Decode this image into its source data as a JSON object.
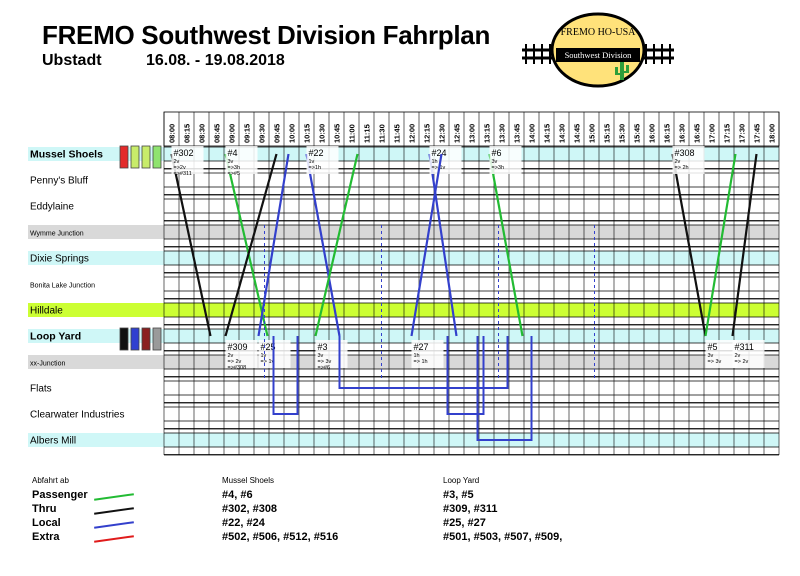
{
  "header": {
    "title": "FREMO Southwest Division Fahrplan",
    "location": "Ubstadt",
    "dates": "16.08. - 19.08.2018"
  },
  "logo": {
    "top_text": "FREMO HO-USA",
    "bottom_text": "Southwest Division",
    "colors": {
      "ring": "#000000",
      "fill": "#ffe27a",
      "cactus": "#2e9e3a"
    }
  },
  "times": [
    "08:00",
    "08:15",
    "08:30",
    "08:45",
    "09:00",
    "09:15",
    "09:30",
    "09:45",
    "10:00",
    "10:15",
    "10:30",
    "10:45",
    "11:00",
    "11:15",
    "11:30",
    "11:45",
    "12:00",
    "12:15",
    "12:30",
    "12:45",
    "13:00",
    "13:15",
    "13:30",
    "13:45",
    "14:00",
    "14:15",
    "14:30",
    "14:45",
    "15:00",
    "15:15",
    "15:30",
    "15:45",
    "16:00",
    "16:15",
    "16:30",
    "16:45",
    "17:00",
    "17:15",
    "17:30",
    "17:45",
    "18:00"
  ],
  "stations": [
    {
      "name": "Mussel Shoels",
      "style": "major",
      "bg": "#cff7f7",
      "swatches": [
        "#e32b2b",
        "#c8ec6a",
        "#c8ec6a",
        "#8fe36f"
      ]
    },
    {
      "name": "Penny's Bluff",
      "style": "normal",
      "bg": "#ffffff"
    },
    {
      "name": "Eddylaine",
      "style": "normal",
      "bg": "#ffffff"
    },
    {
      "name": "Wymme Junction",
      "style": "small",
      "bg": "#d9d9d9"
    },
    {
      "name": "Dixie Springs",
      "style": "normal",
      "bg": "#cff7f7"
    },
    {
      "name": "Bonita Lake Junction",
      "style": "small",
      "bg": "#ffffff"
    },
    {
      "name": "Hilldale",
      "style": "normal",
      "bg": "#ccff33"
    },
    {
      "name": "Loop Yard",
      "style": "major",
      "bg": "#cff7f7",
      "swatches": [
        "#111111",
        "#3040d0",
        "#8b2020",
        "#9a9a9a"
      ]
    },
    {
      "name": "xx-Junction",
      "style": "small",
      "bg": "#d9d9d9"
    },
    {
      "name": "Flats",
      "style": "normal",
      "bg": "#ffffff"
    },
    {
      "name": "Clearwater Industries",
      "style": "normal",
      "bg": "#ffffff"
    },
    {
      "name": "Albers Mill",
      "style": "normal",
      "bg": "#cff7f7"
    }
  ],
  "trains": [
    {
      "id": "#302",
      "type": "thru",
      "color": "#111111",
      "t0": 8.0,
      "t1": 8.65,
      "dir": "down",
      "notes": [
        "2v",
        "=>2v",
        "=>#311"
      ]
    },
    {
      "id": "#4",
      "type": "passenger",
      "color": "#22bb33",
      "t0": 8.9,
      "t1": 9.6,
      "dir": "down",
      "notes": [
        "3v",
        "=>3h",
        "=>#5"
      ]
    },
    {
      "id": "#22",
      "type": "local",
      "color": "#3340cc",
      "t0": 10.25,
      "t1": 10.8,
      "dir": "down",
      "notes": [
        "1v",
        "=>1h"
      ]
    },
    {
      "id": "#24",
      "type": "local",
      "color": "#3340cc",
      "t0": 12.3,
      "t1": 12.75,
      "dir": "down",
      "notes": [
        "1h",
        "=> 1v"
      ]
    },
    {
      "id": "#6",
      "type": "passenger",
      "color": "#22bb33",
      "t0": 13.3,
      "t1": 13.85,
      "dir": "down",
      "notes": [
        "3v",
        "=>3h"
      ]
    },
    {
      "id": "#308",
      "type": "thru",
      "color": "#111111",
      "t0": 16.35,
      "t1": 16.9,
      "dir": "down",
      "notes": [
        "2v",
        "=> 2h"
      ]
    },
    {
      "id": "#309",
      "type": "thru",
      "color": "#111111",
      "t0": 8.9,
      "t1": 9.75,
      "dir": "up",
      "notes": [
        "2v",
        "=> 2v",
        "=>#308"
      ]
    },
    {
      "id": "#25",
      "type": "local",
      "color": "#3340cc",
      "t0": 9.45,
      "t1": 9.95,
      "dir": "up",
      "notes": [
        "1v",
        "=> 1v"
      ]
    },
    {
      "id": "#3",
      "type": "passenger",
      "color": "#22bb33",
      "t0": 10.4,
      "t1": 11.1,
      "dir": "up",
      "notes": [
        "3v",
        "=> 3v",
        "=>#6"
      ]
    },
    {
      "id": "#27",
      "type": "local",
      "color": "#3340cc",
      "t0": 12.0,
      "t1": 12.5,
      "dir": "up",
      "notes": [
        "1h",
        "=> 1h"
      ]
    },
    {
      "id": "#5",
      "type": "passenger",
      "color": "#22bb33",
      "t0": 16.9,
      "t1": 17.4,
      "dir": "up",
      "notes": [
        "3v",
        "=> 3v"
      ]
    },
    {
      "id": "#311",
      "type": "thru",
      "color": "#111111",
      "t0": 17.35,
      "t1": 17.75,
      "dir": "up",
      "notes": [
        "2v",
        "=> 2v"
      ]
    }
  ],
  "legend": {
    "heading": "Abfahrt ab",
    "items": [
      {
        "label": "Passenger",
        "color": "#22bb33"
      },
      {
        "label": "Thru",
        "color": "#111111"
      },
      {
        "label": "Local",
        "color": "#3340cc"
      },
      {
        "label": "Extra",
        "color": "#e01b1b"
      }
    ]
  },
  "columns": [
    {
      "heading": "Mussel Shoels",
      "rows": [
        "#4, #6",
        "#302, #308",
        "#22, #24",
        "#502, #506, #512, #516"
      ]
    },
    {
      "heading": "Loop Yard",
      "rows": [
        "#3, #5",
        "#309, #311",
        "#25, #27",
        "#501, #503, #507, #509,"
      ]
    }
  ]
}
